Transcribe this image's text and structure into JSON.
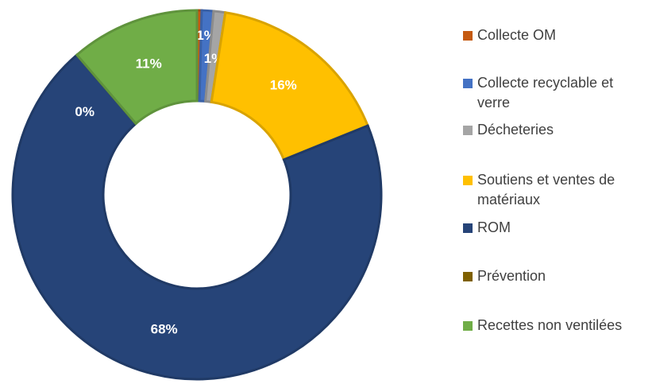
{
  "chart_data": {
    "type": "pie",
    "categories": [
      "Collecte OM",
      "Collecte recyclable et verre",
      "Décheteries",
      "Soutiens et ventes de matériaux",
      "ROM",
      "Prévention",
      "Recettes non ventilées"
    ],
    "values": [
      0.4,
      1,
      1,
      16,
      68,
      0,
      11
    ],
    "value_labels": [
      null,
      "1%",
      "1%",
      "16%",
      "68%",
      "0%",
      "11%"
    ],
    "colors": [
      "#c55a11",
      "#4472c4",
      "#a5a5a5",
      "#ffc000",
      "#264478",
      "#7f6000",
      "#70ad47"
    ],
    "legend": "right"
  }
}
